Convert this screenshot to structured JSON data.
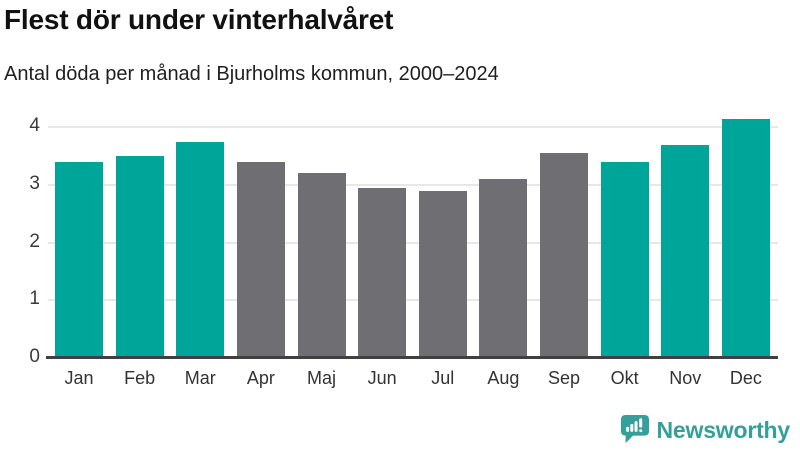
{
  "header": {
    "title": "Flest dör under vinterhalvåret",
    "subtitle": "Antal döda per månad i Bjurholms kommun, 2000–2024"
  },
  "chart_data": {
    "type": "bar",
    "title": "Flest dör under vinterhalvåret",
    "subtitle": "Antal döda per månad i Bjurholms kommun, 2000–2024",
    "categories": [
      "Jan",
      "Feb",
      "Mar",
      "Apr",
      "Maj",
      "Jun",
      "Jul",
      "Aug",
      "Sep",
      "Okt",
      "Nov",
      "Dec"
    ],
    "values": [
      3.4,
      3.5,
      3.75,
      3.4,
      3.2,
      2.95,
      2.9,
      3.1,
      3.55,
      3.4,
      3.7,
      4.15
    ],
    "bar_colors": [
      "#00a59a",
      "#00a59a",
      "#00a59a",
      "#6e6e73",
      "#6e6e73",
      "#6e6e73",
      "#6e6e73",
      "#6e6e73",
      "#6e6e73",
      "#00a59a",
      "#00a59a",
      "#00a59a"
    ],
    "yticks": [
      0,
      1,
      2,
      3,
      4
    ],
    "ylim": [
      0,
      4.3
    ],
    "xlabel": "",
    "ylabel": "",
    "grid": true,
    "legend": "none",
    "colors": {
      "highlight": "#00a59a",
      "muted": "#6e6e73",
      "gridline": "#e7e7e7",
      "axis": "#404040",
      "tick_text": "#3a3a3a"
    }
  },
  "footer": {
    "brand": "Newsworthy",
    "brand_color": "#35a09a",
    "logo_icon": "bar-chart-speech-bubble"
  }
}
